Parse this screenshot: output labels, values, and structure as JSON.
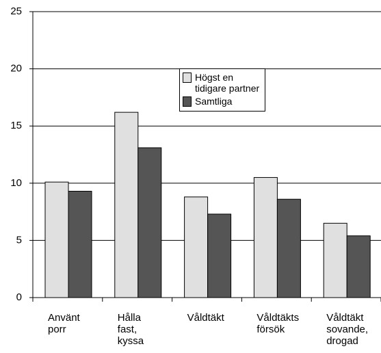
{
  "chart_data": {
    "type": "bar",
    "categories": [
      "Använt\nporr",
      "Hålla\nfast,\nkyssa",
      "Våldtäkt",
      "Våldtäkts\nförsök",
      "Våldtäkt\nsovande,\ndrogad"
    ],
    "series": [
      {
        "name": "Högst en\ntidigare partner",
        "color": "#e0e0e0",
        "values": [
          10.1,
          16.2,
          8.8,
          10.5,
          6.5
        ]
      },
      {
        "name": "Samtliga",
        "color": "#555555",
        "values": [
          9.3,
          13.1,
          7.3,
          8.6,
          5.4
        ]
      }
    ],
    "ylim": [
      0,
      25
    ],
    "yticks": [
      0,
      5,
      10,
      15,
      20,
      25
    ],
    "grid": true,
    "legend": "upper center"
  }
}
